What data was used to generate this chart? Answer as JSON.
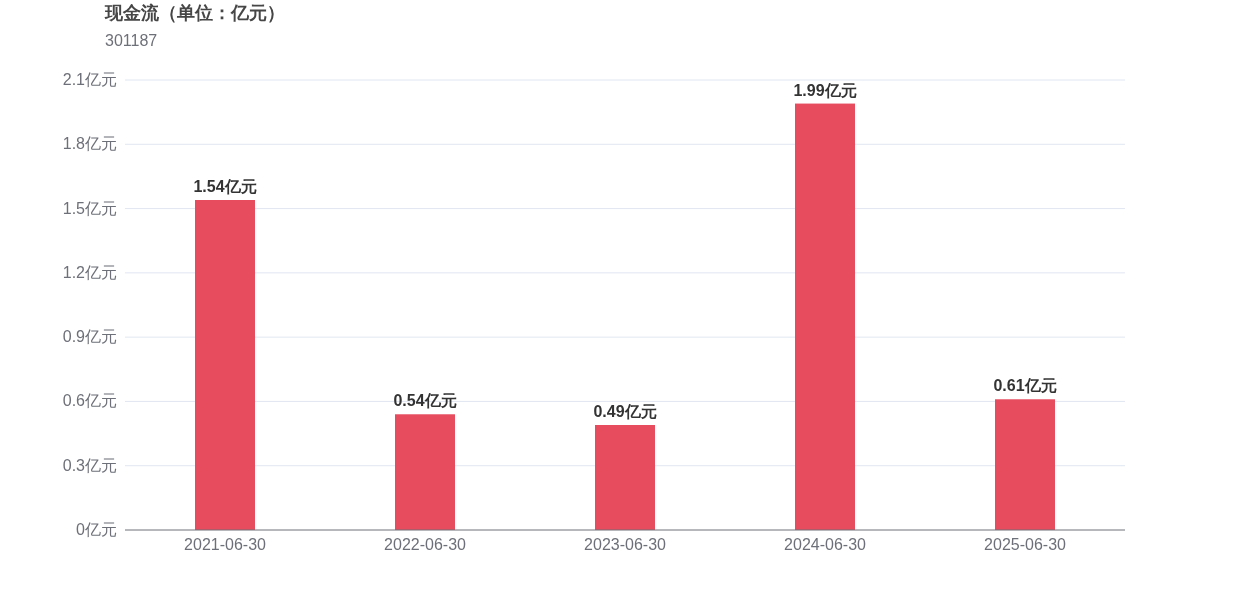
{
  "chart_data": {
    "type": "bar",
    "title": "现金流（单位：亿元）",
    "subtitle": "301187",
    "categories": [
      "2021-06-30",
      "2022-06-30",
      "2023-06-30",
      "2024-06-30",
      "2025-06-30"
    ],
    "values": [
      1.54,
      0.54,
      0.49,
      1.99,
      0.61
    ],
    "value_labels": [
      "1.54亿元",
      "0.54亿元",
      "0.49亿元",
      "1.99亿元",
      "0.61亿元"
    ],
    "color": "#e64b5e",
    "ylim": [
      0,
      2.1
    ],
    "yticks": [
      {
        "value": 0,
        "label": "0亿元"
      },
      {
        "value": 0.3,
        "label": "0.3亿元"
      },
      {
        "value": 0.6,
        "label": "0.6亿元"
      },
      {
        "value": 0.9,
        "label": "0.9亿元"
      },
      {
        "value": 1.2,
        "label": "1.2亿元"
      },
      {
        "value": 1.5,
        "label": "1.5亿元"
      },
      {
        "value": 1.8,
        "label": "1.8亿元"
      },
      {
        "value": 2.1,
        "label": "2.1亿元"
      }
    ],
    "grid": "y"
  }
}
